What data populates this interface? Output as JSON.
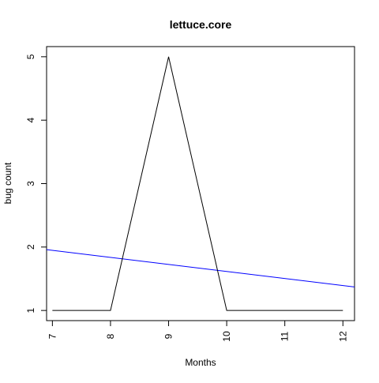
{
  "chart_data": {
    "type": "line",
    "title": "lettuce.core",
    "xlabel": "Months",
    "ylabel": "bug count",
    "x": [
      7,
      8,
      9,
      10,
      11,
      12
    ],
    "xlim": [
      6.9,
      12.2
    ],
    "ylim": [
      0.84,
      5.16
    ],
    "xticks": [
      7,
      8,
      9,
      10,
      11,
      12
    ],
    "yticks": [
      1,
      2,
      3,
      4,
      5
    ],
    "grid": false,
    "legend": "none",
    "series": [
      {
        "values": [
          1,
          1,
          5,
          1,
          1,
          1
        ],
        "color": "#000000"
      }
    ],
    "trendline": {
      "x": [
        6.8,
        12.2
      ],
      "y": [
        1.97,
        1.37
      ],
      "color": "#0000ff"
    }
  }
}
